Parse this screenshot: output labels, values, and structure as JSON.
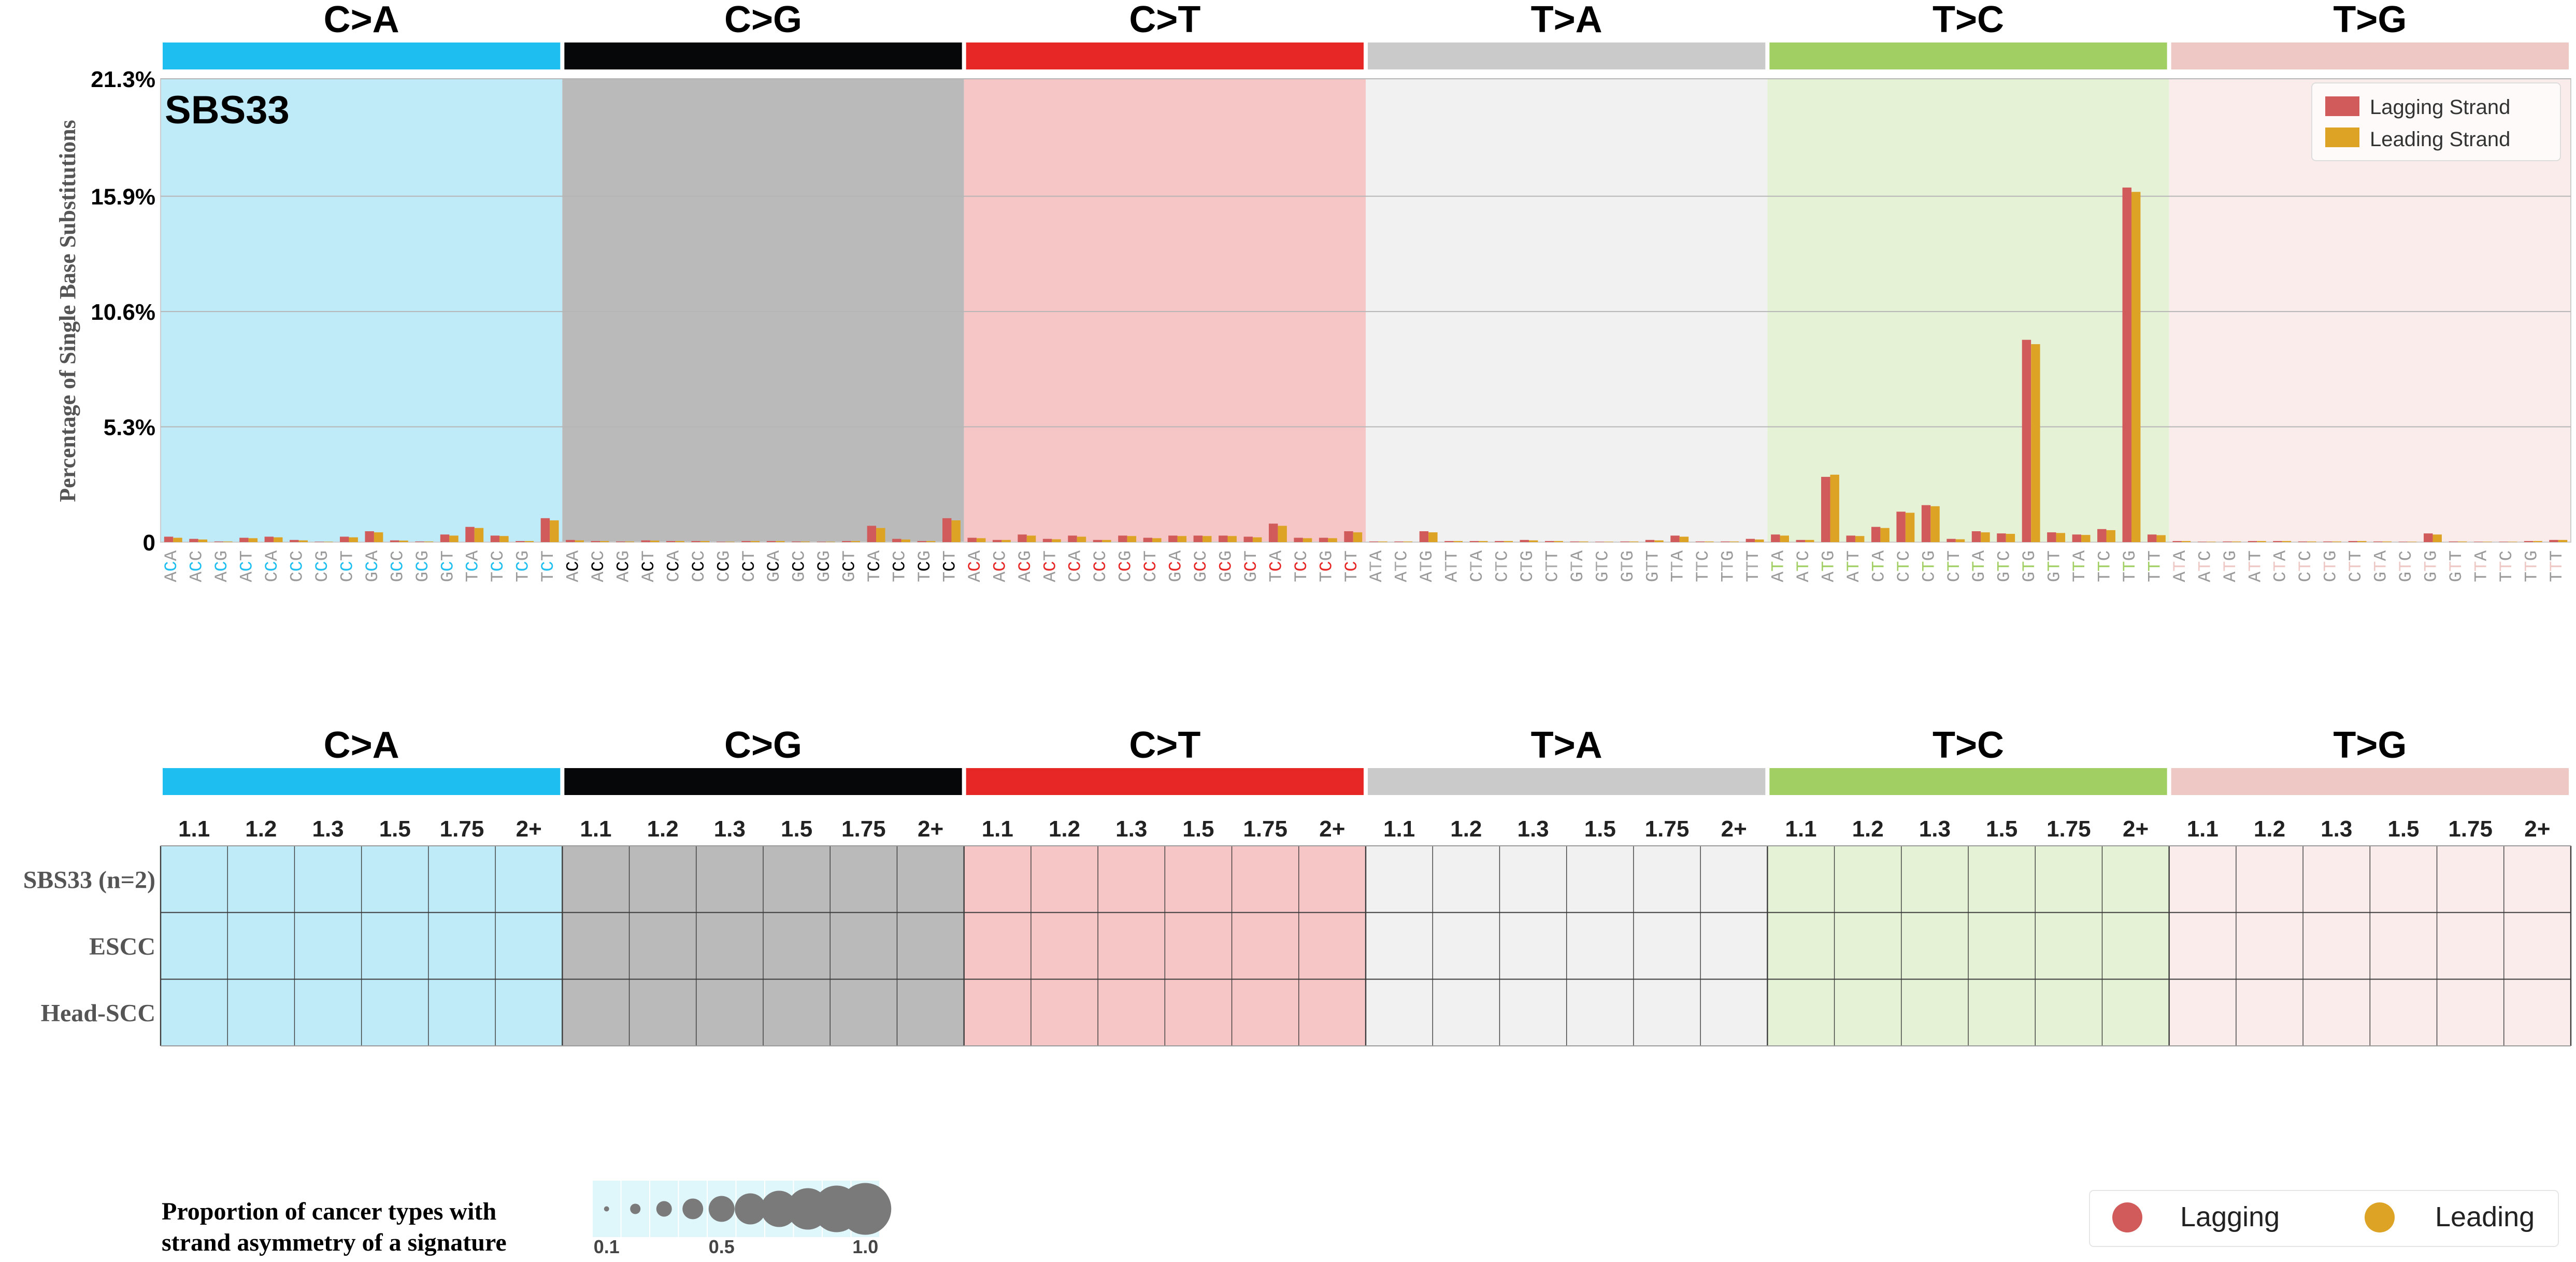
{
  "chart_data": [
    {
      "type": "bar",
      "signature_label": "SBS33",
      "ylabel": "Percentage of Single Base Substitutions",
      "y_ticks": [
        "0",
        "5.3%",
        "10.6%",
        "15.9%",
        "21.3%"
      ],
      "y_tick_values": [
        0,
        5.3,
        10.6,
        15.9,
        21.3
      ],
      "ylim": [
        0,
        21.3
      ],
      "grid": true,
      "legend": {
        "position": "top-right",
        "entries": [
          "Lagging Strand",
          "Leading Strand"
        ]
      },
      "mutation_types": [
        "C>A",
        "C>G",
        "C>T",
        "T>A",
        "T>C",
        "T>G"
      ],
      "type_colors": [
        "#1ebff0",
        "#050708",
        "#e62725",
        "#cbcacb",
        "#a1cf64",
        "#edc8c5"
      ],
      "panel_colors": [
        "#bfeaf8",
        "#bababa",
        "#f6c6c6",
        "#f1f1f1",
        "#e5f2d6",
        "#f9eceb"
      ],
      "label_colors": [
        "#1ebff0",
        "#000000",
        "#e62725",
        "#aaaaaa",
        "#a1cf64",
        "#edc8c5"
      ],
      "categories": [
        [
          "ACA",
          "ACC",
          "ACG",
          "ACT",
          "CCA",
          "CCC",
          "CCG",
          "CCT",
          "GCA",
          "GCC",
          "GCG",
          "GCT",
          "TCA",
          "TCC",
          "TCG",
          "TCT"
        ],
        [
          "ACA",
          "ACC",
          "ACG",
          "ACT",
          "CCA",
          "CCC",
          "CCG",
          "CCT",
          "GCA",
          "GCC",
          "GCG",
          "GCT",
          "TCA",
          "TCC",
          "TCG",
          "TCT"
        ],
        [
          "ACA",
          "ACC",
          "ACG",
          "ACT",
          "CCA",
          "CCC",
          "CCG",
          "CCT",
          "GCA",
          "GCC",
          "GCG",
          "GCT",
          "TCA",
          "TCC",
          "TCG",
          "TCT"
        ],
        [
          "ATA",
          "ATC",
          "ATG",
          "ATT",
          "CTA",
          "CTC",
          "CTG",
          "CTT",
          "GTA",
          "GTC",
          "GTG",
          "GTT",
          "TTA",
          "TTC",
          "TTG",
          "TTT"
        ],
        [
          "ATA",
          "ATC",
          "ATG",
          "ATT",
          "CTA",
          "CTC",
          "CTG",
          "CTT",
          "GTA",
          "GTC",
          "GTG",
          "GTT",
          "TTA",
          "TTC",
          "TTG",
          "TTT"
        ],
        [
          "ATA",
          "ATC",
          "ATG",
          "ATT",
          "CTA",
          "CTC",
          "CTG",
          "CTT",
          "GTA",
          "GTC",
          "GTG",
          "GTT",
          "TTA",
          "TTC",
          "TTG",
          "TTT"
        ]
      ],
      "series": [
        {
          "name": "Lagging Strand",
          "color": "#d15b5b",
          "values": [
            [
              0.25,
              0.15,
              0.03,
              0.2,
              0.25,
              0.1,
              0.02,
              0.25,
              0.5,
              0.08,
              0.03,
              0.35,
              0.7,
              0.3,
              0.05,
              1.1
            ],
            [
              0.1,
              0.05,
              0.03,
              0.08,
              0.05,
              0.05,
              0.02,
              0.05,
              0.05,
              0.03,
              0.02,
              0.05,
              0.75,
              0.15,
              0.05,
              1.1
            ],
            [
              0.2,
              0.1,
              0.35,
              0.15,
              0.3,
              0.1,
              0.3,
              0.2,
              0.3,
              0.3,
              0.3,
              0.25,
              0.85,
              0.2,
              0.2,
              0.5
            ],
            [
              0.03,
              0.03,
              0.5,
              0.05,
              0.05,
              0.05,
              0.1,
              0.05,
              0.03,
              0.02,
              0.03,
              0.1,
              0.3,
              0.03,
              0.03,
              0.15
            ],
            [
              0.35,
              0.1,
              3.0,
              0.3,
              0.7,
              1.4,
              1.7,
              0.15,
              0.5,
              0.4,
              9.3,
              0.45,
              0.35,
              0.6,
              16.3,
              0.35
            ],
            [
              0.05,
              0.02,
              0.03,
              0.05,
              0.05,
              0.03,
              0.03,
              0.05,
              0.03,
              0.02,
              0.4,
              0.03,
              0.02,
              0.02,
              0.05,
              0.1
            ]
          ]
        },
        {
          "name": "Leading Strand",
          "color": "#dda325",
          "values": [
            [
              0.2,
              0.12,
              0.03,
              0.18,
              0.22,
              0.08,
              0.02,
              0.22,
              0.45,
              0.07,
              0.03,
              0.3,
              0.65,
              0.28,
              0.05,
              1.0
            ],
            [
              0.08,
              0.05,
              0.03,
              0.07,
              0.05,
              0.05,
              0.02,
              0.05,
              0.05,
              0.03,
              0.02,
              0.05,
              0.65,
              0.12,
              0.05,
              1.0
            ],
            [
              0.18,
              0.1,
              0.3,
              0.13,
              0.25,
              0.1,
              0.28,
              0.18,
              0.28,
              0.28,
              0.28,
              0.22,
              0.75,
              0.18,
              0.18,
              0.45
            ],
            [
              0.03,
              0.03,
              0.45,
              0.05,
              0.05,
              0.05,
              0.08,
              0.05,
              0.03,
              0.02,
              0.03,
              0.08,
              0.25,
              0.03,
              0.03,
              0.12
            ],
            [
              0.3,
              0.1,
              3.1,
              0.28,
              0.65,
              1.35,
              1.65,
              0.13,
              0.45,
              0.38,
              9.1,
              0.42,
              0.33,
              0.55,
              16.1,
              0.32
            ],
            [
              0.05,
              0.02,
              0.03,
              0.05,
              0.05,
              0.03,
              0.03,
              0.05,
              0.03,
              0.02,
              0.35,
              0.03,
              0.02,
              0.02,
              0.05,
              0.1
            ]
          ]
        }
      ]
    },
    {
      "type": "heatmap",
      "mutation_types": [
        "C>A",
        "C>G",
        "C>T",
        "T>A",
        "T>C",
        "T>G"
      ],
      "columns": [
        "1.1",
        "1.2",
        "1.3",
        "1.5",
        "1.75",
        "2+"
      ],
      "rows": [
        "SBS33 (n=2)",
        "ESCC",
        "Head-SCC"
      ],
      "values": []
    }
  ],
  "size_legend": {
    "title_line1": "Proportion of cancer types with",
    "title_line2": "strand asymmetry of a signature",
    "proportions": [
      0.1,
      0.2,
      0.3,
      0.4,
      0.5,
      0.6,
      0.7,
      0.8,
      0.9,
      1.0
    ],
    "tick_labels": [
      "0.1",
      "0.5",
      "1.0"
    ],
    "tick_values": [
      0.1,
      0.5,
      1.0
    ]
  },
  "strand_legend": {
    "entries": [
      {
        "label": "Lagging",
        "color": "#d15b5b"
      },
      {
        "label": "Leading",
        "color": "#dda325"
      }
    ]
  }
}
